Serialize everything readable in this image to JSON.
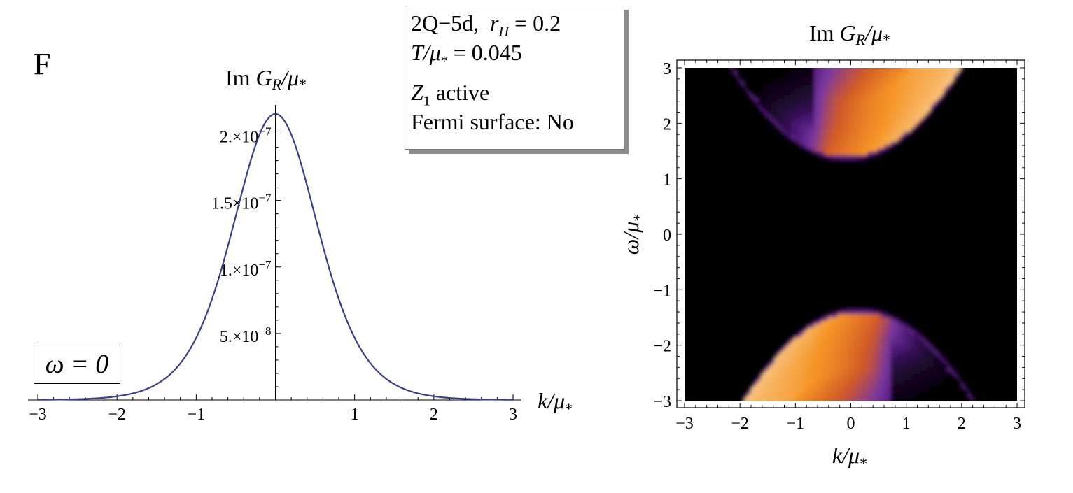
{
  "panel_label": "F",
  "info_box": {
    "line1_model": "2Q−5d,",
    "line1_param": "r",
    "line1_sub": "H",
    "line1_value": "= 0.2",
    "line2_var": "T/μ",
    "line2_sub": "*",
    "line2_value": "= 0.045",
    "line3_var": "Z",
    "line3_sub": "1",
    "line3_text": "active",
    "line4_text": "Fermi surface: No"
  },
  "legend_label": "ω = 0",
  "colors": {
    "curve": "#3b3f8f",
    "axis": "#000000",
    "cmap_dark": "#000000",
    "cmap_purple": "#5a2d91",
    "cmap_orange": "#ee7a1a",
    "cmap_light": "#fffbe8"
  },
  "chart_data": [
    {
      "type": "line",
      "title": "Im G_R/μ_*",
      "title_parts": {
        "prefix": "Im ",
        "var": "G",
        "sub": "R",
        "mid": "/μ",
        "sub2": "*"
      },
      "xlabel": "k/μ_*",
      "xlabel_parts": {
        "var": "k/μ",
        "sub": "*"
      },
      "ylabel": "",
      "xlim": [
        -3.0,
        3.0
      ],
      "ylim": [
        0,
        2.15e-07
      ],
      "x_ticks": [
        -3,
        -2,
        -1,
        1,
        2,
        3
      ],
      "x_tick_labels": [
        "−3",
        "−2",
        "−1",
        "1",
        "2",
        "3"
      ],
      "y_ticks": [
        5e-08,
        1e-07,
        1.5e-07,
        2e-07
      ],
      "y_tick_labels": [
        {
          "mant": "5.×10",
          "exp": "−8"
        },
        {
          "mant": "1.×10",
          "exp": "−7"
        },
        {
          "mant": "1.5×10",
          "exp": "−7"
        },
        {
          "mant": "2.×10",
          "exp": "−7"
        }
      ],
      "series": [
        {
          "name": "Im G_R at ω = 0",
          "x": [
            -3.0,
            -2.8,
            -2.6,
            -2.4,
            -2.2,
            -2.0,
            -1.8,
            -1.6,
            -1.4,
            -1.2,
            -1.0,
            -0.8,
            -0.6,
            -0.4,
            -0.2,
            0.0,
            0.2,
            0.4,
            0.6,
            0.8,
            1.0,
            1.2,
            1.4,
            1.6,
            1.8,
            2.0,
            2.2,
            2.4,
            2.6,
            2.8,
            3.0
          ],
          "y": [
            1.1e-10,
            2.6e-10,
            6.1e-10,
            1.39e-09,
            3.02e-09,
            6.3e-09,
            1.24e-08,
            2.28e-08,
            3.91e-08,
            6.17e-08,
            8.94e-08,
            1.193e-07,
            1.479e-07,
            1.742e-07,
            1.994e-07,
            2.15e-07,
            1.994e-07,
            1.742e-07,
            1.479e-07,
            1.193e-07,
            8.94e-08,
            6.17e-08,
            3.91e-08,
            2.28e-08,
            1.24e-08,
            6.3e-09,
            3.02e-09,
            1.39e-09,
            6.1e-10,
            2.6e-10,
            1.1e-10
          ]
        }
      ]
    },
    {
      "type": "heatmap",
      "title": "Im G_R/μ_*",
      "title_parts": {
        "prefix": "Im ",
        "var": "G",
        "sub": "R",
        "mid": "/μ",
        "sub2": "*"
      },
      "xlabel": "k/μ_*",
      "xlabel_parts": {
        "var": "k/μ",
        "sub": "*"
      },
      "ylabel": "ω/μ_*",
      "ylabel_parts": {
        "var": "ω/μ",
        "sub": "*"
      },
      "xlim": [
        -3,
        3
      ],
      "ylim": [
        -3,
        3
      ],
      "x_ticks": [
        -3,
        -2,
        -1,
        0,
        1,
        2,
        3
      ],
      "x_tick_labels": [
        "−3",
        "−2",
        "−1",
        "0",
        "1",
        "2",
        "3"
      ],
      "y_ticks": [
        -3,
        -2,
        -1,
        0,
        1,
        2,
        3
      ],
      "y_tick_labels": [
        "−3",
        "−2",
        "−1",
        "0",
        "1",
        "2",
        "3"
      ],
      "bands": [
        {
          "name": "upper band",
          "gap_edge": 1.38,
          "k_center": -0.1,
          "curvature": 0.38
        },
        {
          "name": "lower band",
          "gap_edge": -1.38,
          "k_center": 0.1,
          "curvature": 0.38
        }
      ]
    }
  ]
}
